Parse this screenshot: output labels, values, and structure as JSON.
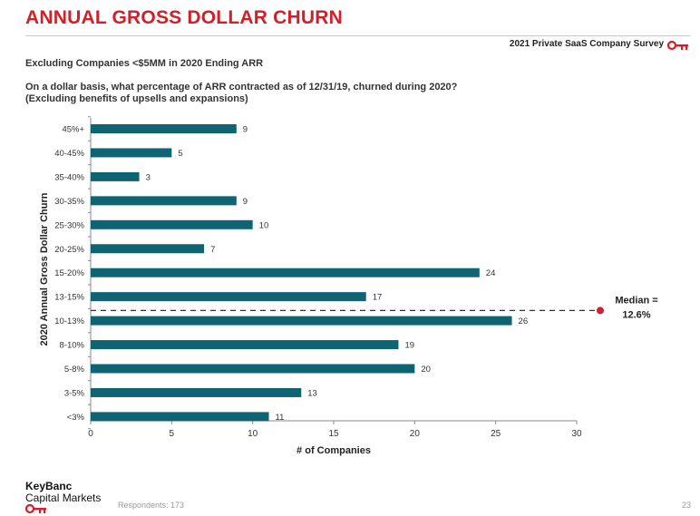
{
  "header": {
    "title": "ANNUAL GROSS DOLLAR CHURN",
    "survey_label": "2021 Private SaaS Company Survey",
    "subtitle": "Excluding Companies <$5MM in 2020 Ending ARR",
    "question_line1": "On a dollar basis, what percentage of ARR contracted as of 12/31/19, churned during 2020?",
    "question_line2": "(Excluding benefits of upsells and expansions)"
  },
  "footer": {
    "brand_line1": "KeyBanc",
    "brand_line2": "Capital Markets",
    "respondents": "Respondents: 173",
    "page_number": "23"
  },
  "colors": {
    "bar": "#0f6474",
    "accent": "#d0202a",
    "median_line": "#333333"
  },
  "icons": [
    "key-icon"
  ],
  "chart_data": {
    "type": "bar",
    "orientation": "horizontal",
    "categories": [
      "45%+",
      "40-45%",
      "35-40%",
      "30-35%",
      "25-30%",
      "20-25%",
      "15-20%",
      "13-15%",
      "10-13%",
      "8-10%",
      "5-8%",
      "3-5%",
      "<3%"
    ],
    "values": [
      9,
      5,
      3,
      9,
      10,
      7,
      24,
      17,
      26,
      19,
      20,
      13,
      11
    ],
    "xlabel": "# of Companies",
    "ylabel": "2020 Annual Gross Dollar Churn",
    "xlim": [
      0,
      30
    ],
    "xticks": [
      0,
      5,
      10,
      15,
      20,
      25,
      30
    ],
    "grid": false,
    "median": {
      "label_line1": "Median =",
      "label_line2": "12.6%",
      "between": [
        "13-15%",
        "10-13%"
      ]
    }
  }
}
